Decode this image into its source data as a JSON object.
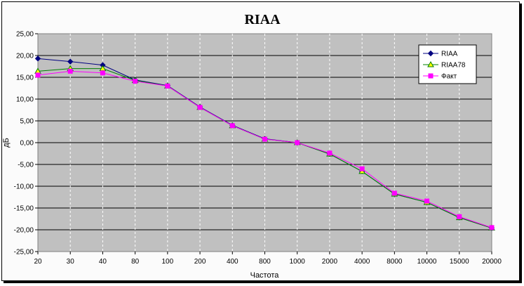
{
  "chart_data": {
    "type": "line",
    "title": "RIAA",
    "xlabel": "Частота",
    "ylabel": "дБ",
    "categories": [
      "20",
      "30",
      "40",
      "80",
      "100",
      "200",
      "400",
      "800",
      "1000",
      "2000",
      "4000",
      "8000",
      "10000",
      "15000",
      "20000"
    ],
    "ylim": [
      -25,
      25
    ],
    "yticks": [
      "-25,00",
      "-20,00",
      "-15,00",
      "-10,00",
      "-5,00",
      "0,00",
      "5,00",
      "10,00",
      "15,00",
      "20,00",
      "25,00"
    ],
    "grid": true,
    "legend_position": "top-right",
    "series": [
      {
        "name": "RIAA",
        "color": "#000080",
        "marker": "diamond",
        "values": [
          19.3,
          18.6,
          17.8,
          14.4,
          13.1,
          8.2,
          4.0,
          0.9,
          0.0,
          -2.6,
          -6.6,
          -11.8,
          -13.7,
          -17.2,
          -19.6
        ]
      },
      {
        "name": "RIAA78",
        "color": "#008000",
        "marker": "triangle",
        "values": [
          16.4,
          17.0,
          17.0,
          14.3,
          13.0,
          8.1,
          3.9,
          0.8,
          0.0,
          -2.6,
          -6.6,
          -11.8,
          -13.7,
          -17.2,
          -19.6
        ]
      },
      {
        "name": "Факт",
        "color": "#ff00ff",
        "marker": "square",
        "values": [
          15.5,
          16.4,
          16.0,
          14.1,
          13.0,
          8.1,
          3.9,
          0.8,
          0.0,
          -2.4,
          -6.0,
          -11.6,
          -13.4,
          -17.0,
          -19.5
        ]
      }
    ]
  }
}
